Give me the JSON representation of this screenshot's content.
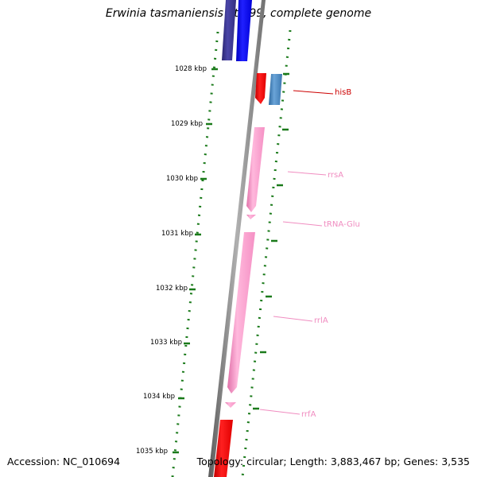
{
  "title": "Erwinia tasmaniensis Et1/99, complete genome",
  "footer": {
    "accession": "Accession: NC_010694",
    "topology": "Topology: circular; Length: 3,883,467 bp; Genes: 3,535"
  },
  "ticks": [
    "1028 kbp",
    "1029 kbp",
    "1030 kbp",
    "1031 kbp",
    "1032 kbp",
    "1033 kbp",
    "1034 kbp",
    "1035 kbp"
  ],
  "features": [
    {
      "label": "hisB",
      "color": "#cc0000"
    },
    {
      "label": "rrsA",
      "color": "#f08cc0"
    },
    {
      "label": "tRNA-Glu",
      "color": "#f08cc0"
    },
    {
      "label": "rrlA",
      "color": "#f08cc0"
    },
    {
      "label": "rrfA",
      "color": "#f08cc0"
    }
  ],
  "colors": {
    "backbone": "#888888",
    "tick": "#1a7a1a",
    "cds_forward": "#0000ee",
    "cds_forward_dark": "#3a3590",
    "cds_reverse": "#ee0000",
    "gene_blue": "#4a86c0",
    "rrna": "#ff99cc"
  }
}
